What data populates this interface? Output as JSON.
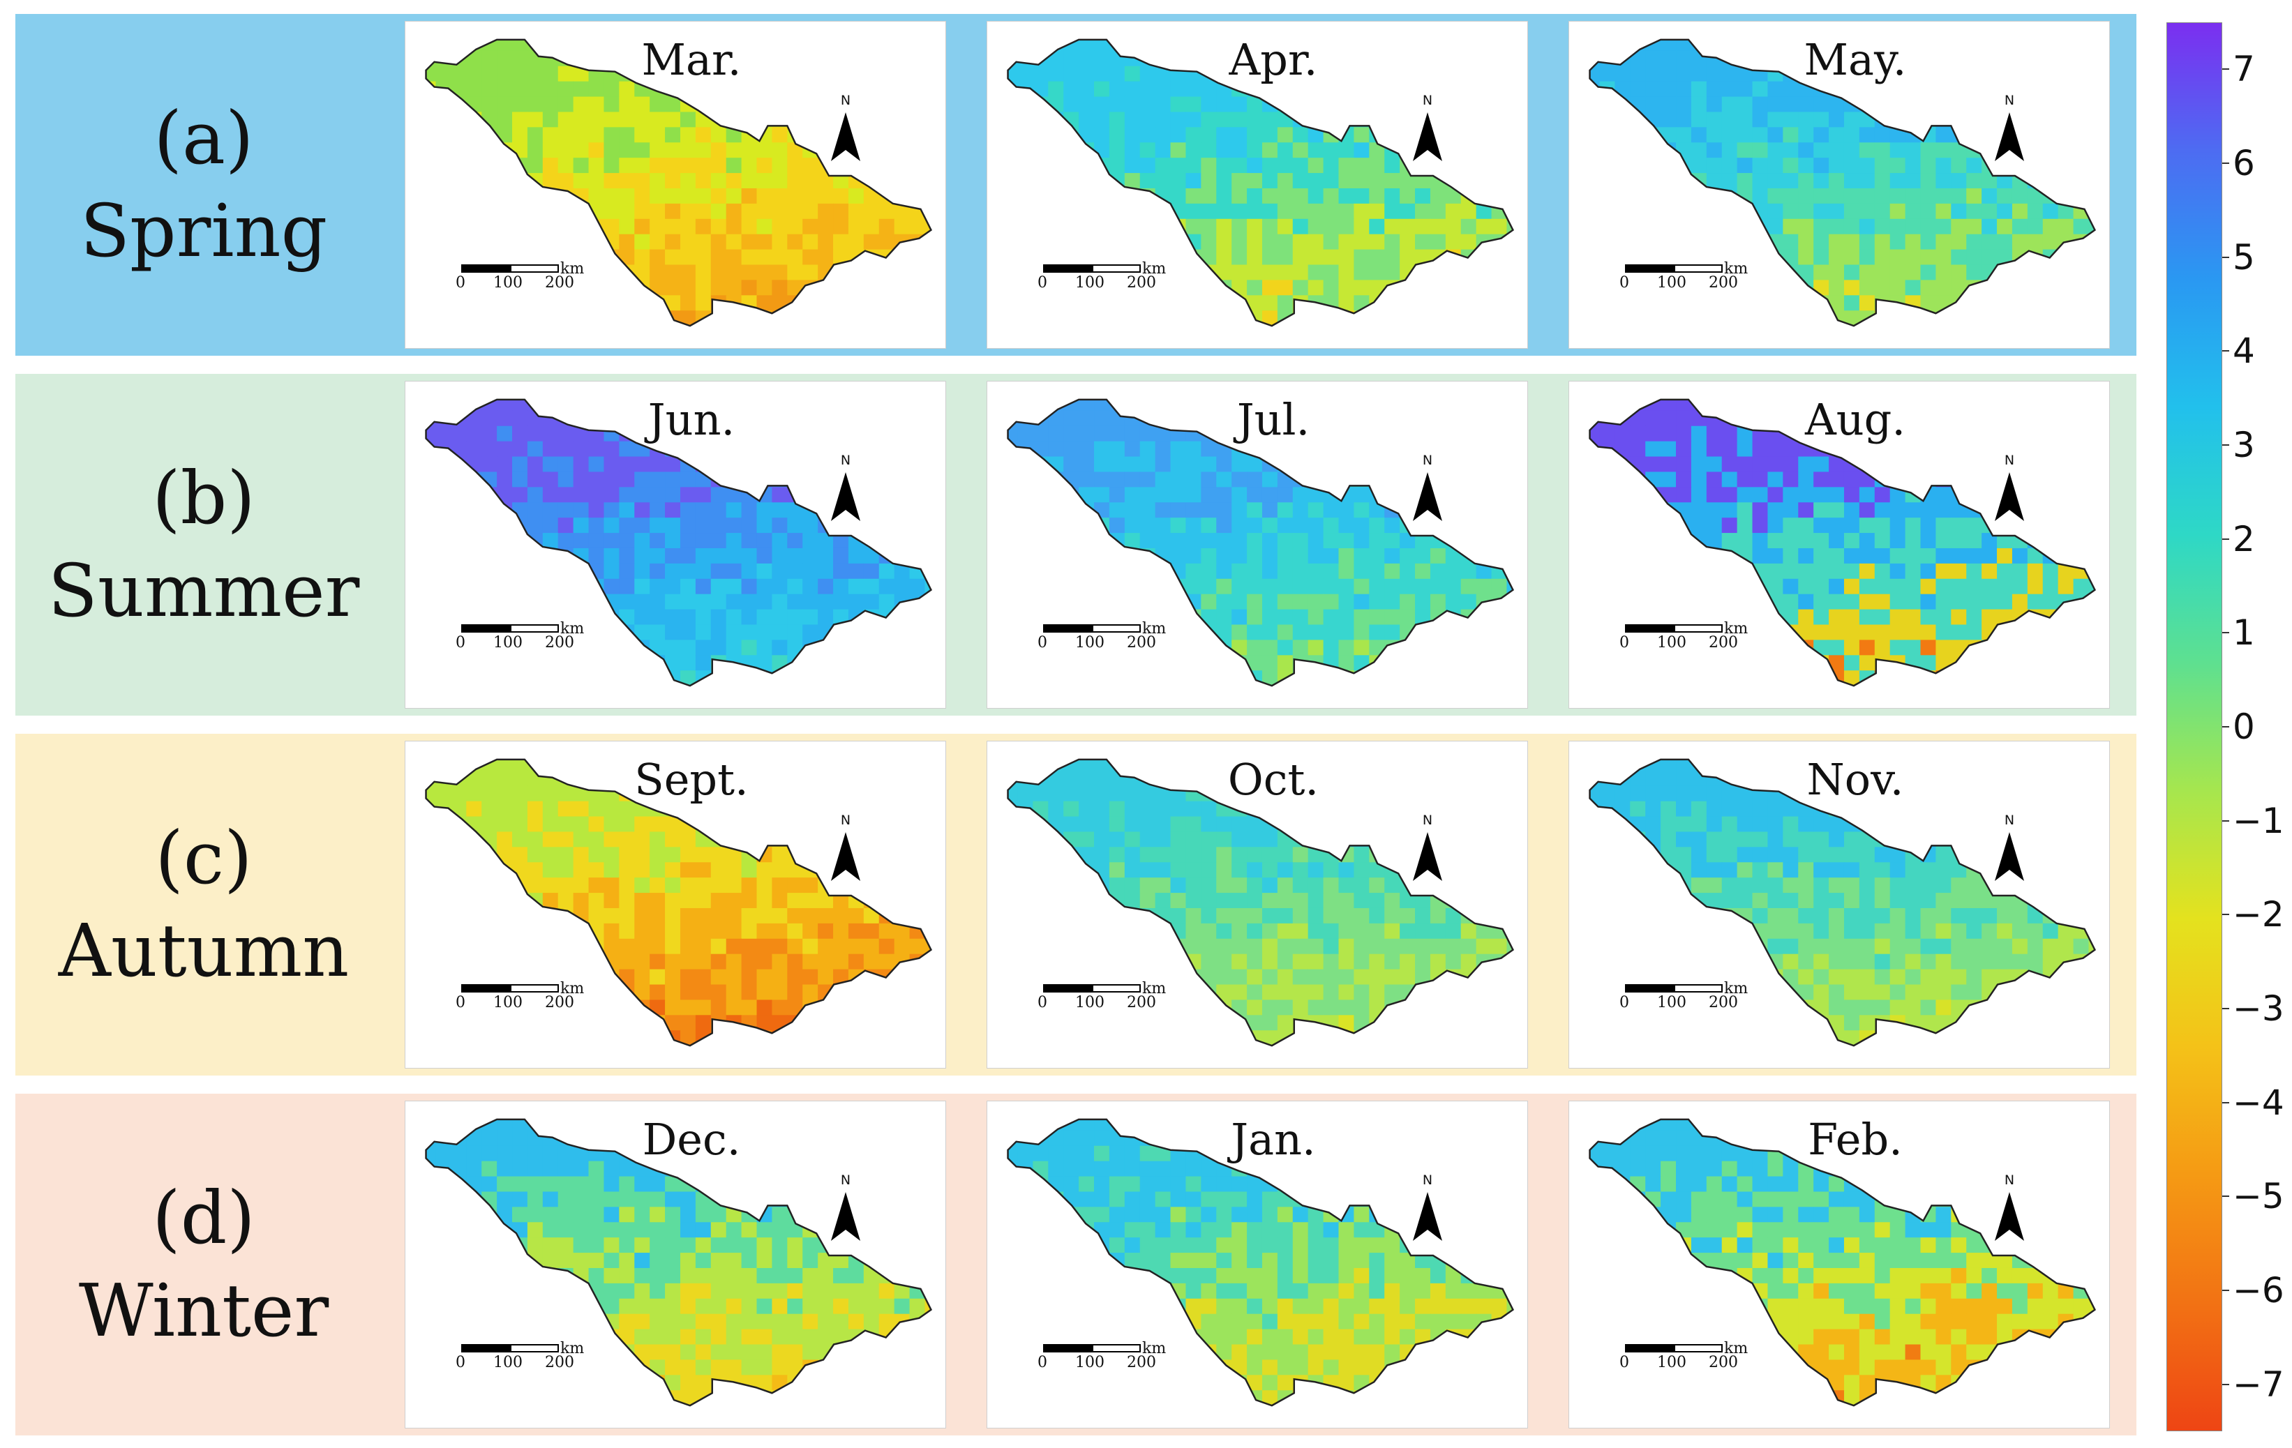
{
  "seasons": [
    {
      "letter": "(a)",
      "name": "Spring",
      "color": "#87ceee",
      "months": [
        {
          "label": "Mar.",
          "palette": [
            "#8fe04a",
            "#d8ea20",
            "#f4d41a",
            "#f5b316",
            "#f29a14"
          ]
        },
        {
          "label": "Apr.",
          "palette": [
            "#2ec9ec",
            "#36d8c8",
            "#7ee27a",
            "#c6e834",
            "#f1d41c"
          ]
        },
        {
          "label": "May.",
          "palette": [
            "#2db5ef",
            "#33cfe0",
            "#4fdcaf",
            "#9de45a",
            "#e6dd22"
          ]
        }
      ]
    },
    {
      "letter": "(b)",
      "name": "Summer",
      "color": "#d6eddc",
      "months": [
        {
          "label": "Jun.",
          "palette": [
            "#6a5cf0",
            "#3f8ff2",
            "#2ab4ef",
            "#2ec9ea",
            "#3fd7c4"
          ]
        },
        {
          "label": "Jul.",
          "palette": [
            "#3fa1f2",
            "#2ec2ec",
            "#38d6cf",
            "#6fe08c",
            "#a9e64c"
          ]
        },
        {
          "label": "Aug.",
          "palette": [
            "#6a4ff0",
            "#2ab0f0",
            "#46d8c0",
            "#e7d31e",
            "#f27a12"
          ]
        }
      ]
    },
    {
      "letter": "(c)",
      "name": "Autumn",
      "color": "#fcefc8",
      "months": [
        {
          "label": "Sept.",
          "palette": [
            "#b8e83e",
            "#f0d81e",
            "#f5b014",
            "#f38a14",
            "#ef6a10"
          ]
        },
        {
          "label": "Oct.",
          "palette": [
            "#34cbe0",
            "#47d8b8",
            "#7ee084",
            "#b4e64a",
            "#dbe426"
          ]
        },
        {
          "label": "Nov.",
          "palette": [
            "#2fc0ea",
            "#44d6c0",
            "#7ae088",
            "#b0e64c",
            "#d8e228"
          ]
        }
      ]
    },
    {
      "letter": "(d)",
      "name": "Winter",
      "color": "#fbe3d6",
      "months": [
        {
          "label": "Dec.",
          "palette": [
            "#2fbdec",
            "#5edc9e",
            "#b7e646",
            "#ecd820",
            "#f4bb16"
          ]
        },
        {
          "label": "Jan.",
          "palette": [
            "#2fc3ea",
            "#4ed9b2",
            "#9ce45c",
            "#e0dc24",
            "#f3c618"
          ]
        },
        {
          "label": "Feb.",
          "palette": [
            "#31c2ea",
            "#6ee08e",
            "#d5e52c",
            "#f4b616",
            "#f17c12"
          ]
        }
      ]
    }
  ],
  "scale": {
    "ticks": [
      "0",
      "100",
      "200"
    ],
    "unit": "km"
  },
  "north_label": "N",
  "colorbar": {
    "ticks": [
      "7",
      "6",
      "5",
      "4",
      "3",
      "2",
      "1",
      "0",
      "−1",
      "−2",
      "−3",
      "−4",
      "−5",
      "−6",
      "−7"
    ],
    "range": [
      -7.5,
      7.5
    ],
    "colors": [
      "#7b2ff0",
      "#4d6cf2",
      "#2a98f2",
      "#22c0ec",
      "#2ed8c6",
      "#5ee090",
      "#a6e64e",
      "#e4e21e",
      "#f4c218",
      "#f59a14",
      "#f27214",
      "#ee4514"
    ]
  }
}
